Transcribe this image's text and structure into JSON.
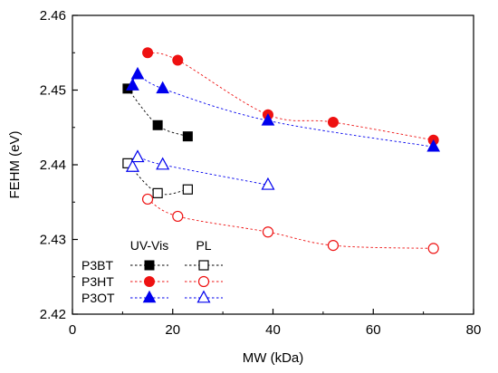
{
  "chart_data": {
    "type": "scatter",
    "xlabel": "MW (kDa)",
    "ylabel": "FEHM (eV)",
    "xlim": [
      0,
      80
    ],
    "ylim": [
      2.42,
      2.46
    ],
    "x_ticks": [
      "0",
      "20",
      "40",
      "60",
      "80"
    ],
    "y_ticks": [
      "2.42",
      "2.43",
      "2.44",
      "2.45",
      "2.46"
    ],
    "grid": false,
    "legend": {
      "position": "bottom-left",
      "column_headers": [
        "UV-Vis",
        "PL"
      ],
      "row_labels": [
        "P3BT",
        "P3HT",
        "P3OT"
      ]
    },
    "series": [
      {
        "group": "P3BT",
        "method": "UV-Vis",
        "marker": "square",
        "filled": true,
        "color": "#000000",
        "points": [
          [
            11,
            2.4502
          ],
          [
            17,
            2.4453
          ],
          [
            23,
            2.4438
          ]
        ]
      },
      {
        "group": "P3HT",
        "method": "UV-Vis",
        "marker": "circle",
        "filled": true,
        "color": "#ee1111",
        "points": [
          [
            15,
            2.455
          ],
          [
            21,
            2.454
          ],
          [
            39,
            2.4467
          ],
          [
            52,
            2.4457
          ],
          [
            72,
            2.4433
          ]
        ]
      },
      {
        "group": "P3OT",
        "method": "UV-Vis",
        "marker": "triangle",
        "filled": true,
        "color": "#0000ee",
        "points": [
          [
            12,
            2.4506
          ],
          [
            13,
            2.4521
          ],
          [
            18,
            2.4502
          ],
          [
            39,
            2.4459
          ],
          [
            72,
            2.4424
          ]
        ]
      },
      {
        "group": "P3BT",
        "method": "PL",
        "marker": "square",
        "filled": false,
        "color": "#000000",
        "points": [
          [
            11,
            2.4402
          ],
          [
            17,
            2.4362
          ],
          [
            23,
            2.4367
          ]
        ]
      },
      {
        "group": "P3HT",
        "method": "PL",
        "marker": "circle",
        "filled": false,
        "color": "#ee1111",
        "points": [
          [
            15,
            2.4354
          ],
          [
            21,
            2.4331
          ],
          [
            39,
            2.431
          ],
          [
            52,
            2.4292
          ],
          [
            72,
            2.4288
          ]
        ]
      },
      {
        "group": "P3OT",
        "method": "PL",
        "marker": "triangle",
        "filled": false,
        "color": "#0000ee",
        "points": [
          [
            12,
            2.4397
          ],
          [
            13,
            2.441
          ],
          [
            18,
            2.44
          ],
          [
            39,
            2.4373
          ]
        ]
      }
    ]
  }
}
